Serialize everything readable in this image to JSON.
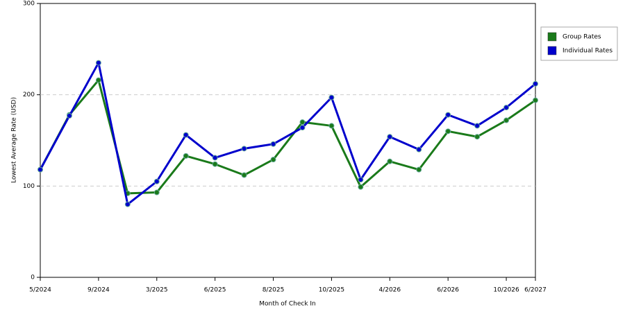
{
  "chart_data": {
    "type": "line",
    "x_label": "Month of Check In",
    "y_label": "Lowest Average Rate (USD)",
    "categories": [
      "5/2024",
      null,
      "9/2024",
      null,
      "3/2025",
      null,
      "6/2025",
      null,
      "8/2025",
      null,
      "10/2025",
      null,
      "4/2026",
      null,
      "6/2026",
      null,
      "10/2026",
      "6/2027"
    ],
    "series": [
      {
        "name": "Group Rates",
        "color": "#1a7a1a",
        "values": [
          118,
          178,
          216,
          92,
          93,
          133,
          124,
          112,
          129,
          170,
          166,
          99,
          127,
          118,
          160,
          154,
          172,
          194
        ]
      },
      {
        "name": "Individual Rates",
        "color": "#0000cc",
        "values": [
          118,
          177,
          235,
          80,
          105,
          156,
          131,
          141,
          146,
          164,
          197,
          107,
          154,
          140,
          178,
          166,
          186,
          212
        ]
      }
    ],
    "ylim": [
      0,
      300
    ],
    "yticks": [
      0,
      100,
      200,
      300
    ],
    "grid": true,
    "legend": "right"
  }
}
